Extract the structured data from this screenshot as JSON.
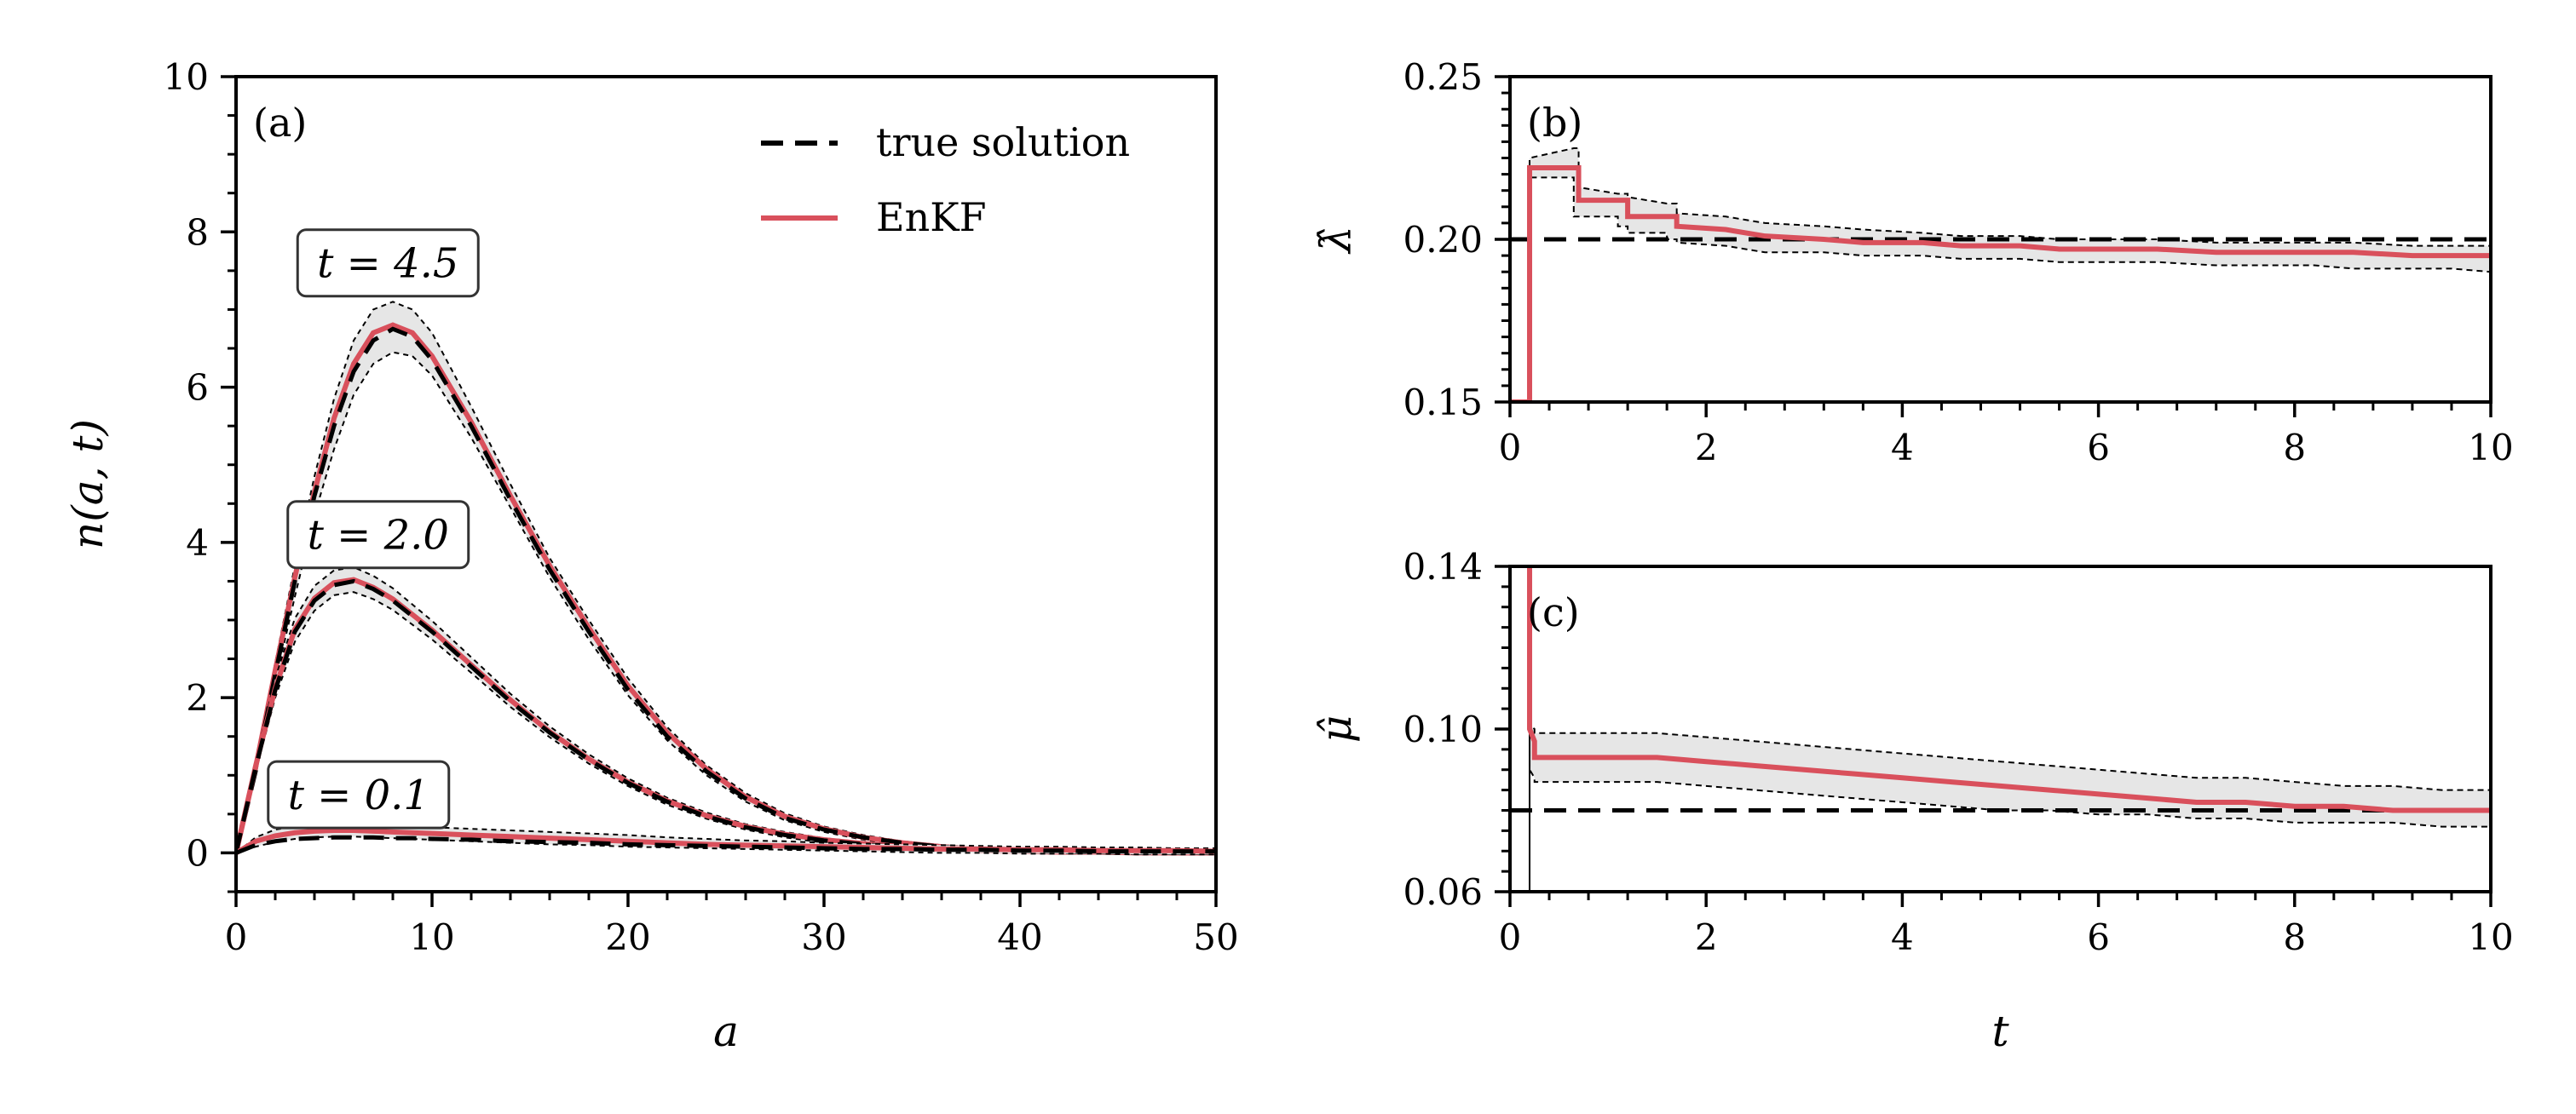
{
  "colors": {
    "enkf": "#d9505c",
    "band_fill": "#e6e6e6",
    "true": "#000000"
  },
  "legend": [
    {
      "label": "true solution",
      "style": "dashed-black"
    },
    {
      "label": "EnKF",
      "style": "solid-red"
    }
  ],
  "chart_data": [
    {
      "id": "a",
      "panel_label": "(a)",
      "type": "line",
      "xlabel": "a",
      "ylabel": "n(a, t)",
      "xlim": [
        0,
        50
      ],
      "ylim": [
        -0.5,
        10
      ],
      "xticks": [
        0,
        10,
        20,
        30,
        40,
        50
      ],
      "yticks": [
        0,
        2,
        4,
        6,
        8,
        10
      ],
      "grid": false,
      "legend_position": "top-right",
      "annotations": [
        {
          "text": "t = 4.5",
          "x": 7.75,
          "y": 7.6
        },
        {
          "text": "t = 2.0",
          "x": 7.25,
          "y": 4.1
        },
        {
          "text": "t = 0.1",
          "x": 6.25,
          "y": 0.75
        }
      ],
      "series": [
        {
          "name": "t = 4.5",
          "x": [
            0,
            1,
            2,
            3,
            4,
            5,
            6,
            7,
            8,
            9,
            10,
            12,
            14,
            16,
            18,
            20,
            22,
            24,
            26,
            28,
            30,
            32,
            34,
            36,
            38,
            40,
            42,
            44,
            46,
            48,
            50
          ],
          "true": [
            0,
            1.05,
            2.3,
            3.5,
            4.6,
            5.5,
            6.2,
            6.6,
            6.75,
            6.65,
            6.35,
            5.5,
            4.55,
            3.65,
            2.85,
            2.1,
            1.5,
            1.05,
            0.7,
            0.45,
            0.3,
            0.2,
            0.13,
            0.08,
            0.05,
            0.03,
            0.02,
            0.01,
            0.01,
            0,
            0
          ],
          "enkf": [
            0,
            1.1,
            2.35,
            3.55,
            4.65,
            5.6,
            6.3,
            6.7,
            6.8,
            6.7,
            6.4,
            5.55,
            4.6,
            3.7,
            2.9,
            2.15,
            1.55,
            1.08,
            0.72,
            0.47,
            0.31,
            0.2,
            0.13,
            0.08,
            0.05,
            0.03,
            0.02,
            0.01,
            0.01,
            0,
            0
          ],
          "lower": [
            0,
            1.0,
            2.2,
            3.3,
            4.35,
            5.2,
            5.9,
            6.3,
            6.45,
            6.4,
            6.15,
            5.35,
            4.45,
            3.55,
            2.75,
            2.03,
            1.45,
            1.0,
            0.66,
            0.42,
            0.27,
            0.17,
            0.1,
            0.06,
            0.03,
            0.01,
            0,
            -0.01,
            -0.01,
            -0.02,
            -0.02
          ],
          "upper": [
            0,
            1.15,
            2.45,
            3.7,
            4.85,
            5.85,
            6.6,
            7.0,
            7.1,
            7.0,
            6.7,
            5.75,
            4.75,
            3.8,
            3.0,
            2.25,
            1.62,
            1.13,
            0.77,
            0.51,
            0.34,
            0.23,
            0.15,
            0.1,
            0.07,
            0.05,
            0.04,
            0.03,
            0.03,
            0.02,
            0.02
          ]
        },
        {
          "name": "t = 2.0",
          "x": [
            0,
            1,
            2,
            3,
            4,
            5,
            6,
            7,
            8,
            9,
            10,
            12,
            14,
            16,
            18,
            20,
            22,
            24,
            26,
            28,
            30,
            32,
            34,
            36,
            38,
            40,
            42,
            44,
            46,
            48,
            50
          ],
          "true": [
            0,
            1.1,
            2.1,
            2.85,
            3.25,
            3.45,
            3.5,
            3.4,
            3.25,
            3.05,
            2.85,
            2.4,
            1.95,
            1.55,
            1.2,
            0.9,
            0.66,
            0.47,
            0.33,
            0.23,
            0.16,
            0.11,
            0.07,
            0.05,
            0.03,
            0.02,
            0.01,
            0.01,
            0,
            0,
            0
          ],
          "enkf": [
            0,
            1.12,
            2.12,
            2.88,
            3.28,
            3.48,
            3.52,
            3.42,
            3.27,
            3.07,
            2.87,
            2.42,
            1.97,
            1.56,
            1.21,
            0.91,
            0.67,
            0.48,
            0.34,
            0.24,
            0.17,
            0.12,
            0.08,
            0.05,
            0.03,
            0.02,
            0.01,
            0.01,
            0,
            0,
            0
          ],
          "lower": [
            0,
            1.05,
            2.0,
            2.72,
            3.12,
            3.32,
            3.36,
            3.27,
            3.13,
            2.94,
            2.75,
            2.32,
            1.88,
            1.49,
            1.15,
            0.86,
            0.62,
            0.44,
            0.3,
            0.2,
            0.13,
            0.08,
            0.05,
            0.02,
            0.01,
            0,
            -0.01,
            -0.01,
            -0.02,
            -0.02,
            -0.02
          ],
          "upper": [
            0,
            1.2,
            2.25,
            3.02,
            3.44,
            3.64,
            3.68,
            3.57,
            3.41,
            3.2,
            2.99,
            2.52,
            2.05,
            1.63,
            1.27,
            0.96,
            0.71,
            0.52,
            0.37,
            0.27,
            0.19,
            0.14,
            0.1,
            0.07,
            0.05,
            0.04,
            0.03,
            0.03,
            0.02,
            0.02,
            0.02
          ]
        },
        {
          "name": "t = 0.1",
          "x": [
            0,
            1,
            2,
            3,
            4,
            5,
            6,
            7,
            8,
            9,
            10,
            12,
            14,
            16,
            18,
            20,
            22,
            24,
            26,
            28,
            30,
            32,
            34,
            36,
            38,
            40,
            42,
            44,
            46,
            48,
            50
          ],
          "true": [
            0,
            0.1,
            0.15,
            0.18,
            0.19,
            0.2,
            0.2,
            0.2,
            0.19,
            0.19,
            0.18,
            0.17,
            0.15,
            0.14,
            0.13,
            0.11,
            0.1,
            0.09,
            0.08,
            0.07,
            0.06,
            0.05,
            0.05,
            0.04,
            0.04,
            0.03,
            0.03,
            0.02,
            0.02,
            0.02,
            0.02
          ],
          "enkf": [
            0,
            0.15,
            0.22,
            0.26,
            0.28,
            0.29,
            0.29,
            0.28,
            0.27,
            0.26,
            0.25,
            0.23,
            0.21,
            0.19,
            0.17,
            0.15,
            0.13,
            0.11,
            0.1,
            0.09,
            0.08,
            0.07,
            0.06,
            0.05,
            0.05,
            0.04,
            0.04,
            0.03,
            0.03,
            0.03,
            0.02
          ],
          "lower": [
            0,
            0.08,
            0.14,
            0.18,
            0.2,
            0.21,
            0.21,
            0.2,
            0.19,
            0.18,
            0.17,
            0.15,
            0.13,
            0.11,
            0.1,
            0.08,
            0.07,
            0.06,
            0.05,
            0.04,
            0.03,
            0.02,
            0.01,
            0,
            0,
            -0.01,
            -0.01,
            -0.01,
            -0.02,
            -0.02,
            -0.02
          ],
          "upper": [
            0,
            0.2,
            0.3,
            0.34,
            0.36,
            0.37,
            0.37,
            0.36,
            0.35,
            0.34,
            0.33,
            0.31,
            0.29,
            0.27,
            0.25,
            0.23,
            0.2,
            0.18,
            0.16,
            0.15,
            0.13,
            0.12,
            0.11,
            0.1,
            0.09,
            0.08,
            0.08,
            0.07,
            0.07,
            0.06,
            0.06
          ]
        }
      ]
    },
    {
      "id": "b",
      "panel_label": "(b)",
      "type": "line",
      "xlabel": "",
      "ylabel": "λ̂",
      "xlim": [
        0,
        10
      ],
      "ylim": [
        0.15,
        0.25
      ],
      "xticks": [
        0,
        2,
        4,
        6,
        8,
        10
      ],
      "yticks": [
        0.15,
        0.2,
        0.25
      ],
      "ytick_labels": [
        "0.15",
        "0.20",
        "0.25"
      ],
      "grid": false,
      "true_value": 0.2,
      "t": [
        0,
        0.1,
        0.2,
        0.2,
        0.65,
        0.65,
        0.7,
        0.7,
        1.1,
        1.1,
        1.2,
        1.2,
        1.6,
        1.6,
        1.7,
        1.7,
        2.2,
        2.6,
        3.2,
        3.6,
        4.2,
        4.6,
        5.2,
        5.6,
        6.2,
        6.6,
        7.2,
        7.6,
        8.2,
        8.6,
        9.2,
        9.6,
        10
      ],
      "enkf": [
        0.15,
        0.15,
        0.15,
        0.222,
        0.222,
        0.222,
        0.222,
        0.212,
        0.212,
        0.212,
        0.212,
        0.207,
        0.207,
        0.207,
        0.207,
        0.204,
        0.203,
        0.201,
        0.2,
        0.199,
        0.199,
        0.198,
        0.198,
        0.197,
        0.197,
        0.197,
        0.196,
        0.196,
        0.196,
        0.196,
        0.195,
        0.195,
        0.195
      ],
      "lower": [
        0.15,
        0.15,
        0.15,
        0.219,
        0.219,
        0.207,
        0.207,
        0.207,
        0.207,
        0.204,
        0.204,
        0.202,
        0.202,
        0.2,
        0.2,
        0.199,
        0.198,
        0.196,
        0.196,
        0.195,
        0.195,
        0.194,
        0.194,
        0.193,
        0.193,
        0.193,
        0.192,
        0.192,
        0.192,
        0.191,
        0.191,
        0.191,
        0.19
      ],
      "upper": [
        0.15,
        0.15,
        0.15,
        0.225,
        0.228,
        0.228,
        0.228,
        0.216,
        0.214,
        0.214,
        0.214,
        0.213,
        0.211,
        0.211,
        0.211,
        0.208,
        0.207,
        0.205,
        0.204,
        0.203,
        0.202,
        0.201,
        0.201,
        0.2,
        0.2,
        0.2,
        0.199,
        0.199,
        0.199,
        0.199,
        0.198,
        0.198,
        0.198
      ]
    },
    {
      "id": "c",
      "panel_label": "(c)",
      "type": "line",
      "xlabel": "t",
      "ylabel": "μ̂",
      "xlim": [
        0,
        10
      ],
      "ylim": [
        0.06,
        0.14
      ],
      "xticks": [
        0,
        2,
        4,
        6,
        8,
        10
      ],
      "yticks": [
        0.06,
        0.1,
        0.14
      ],
      "ytick_labels": [
        "0.06",
        "0.10",
        "0.14"
      ],
      "grid": false,
      "true_value": 0.08,
      "t": [
        0.2,
        0.2,
        0.25,
        0.25,
        1,
        1.5,
        2,
        2.5,
        3,
        3.5,
        4,
        4.5,
        5,
        5.5,
        6,
        6.5,
        7,
        7.5,
        8,
        8.5,
        9,
        9.5,
        10
      ],
      "enkf": [
        0.14,
        0.1,
        0.097,
        0.093,
        0.093,
        0.093,
        0.092,
        0.091,
        0.09,
        0.089,
        0.088,
        0.087,
        0.086,
        0.085,
        0.084,
        0.083,
        0.082,
        0.082,
        0.081,
        0.081,
        0.08,
        0.08,
        0.08
      ],
      "lower": [
        0.14,
        0.09,
        0.088,
        0.087,
        0.087,
        0.087,
        0.086,
        0.085,
        0.084,
        0.083,
        0.082,
        0.081,
        0.08,
        0.08,
        0.079,
        0.079,
        0.078,
        0.078,
        0.077,
        0.077,
        0.077,
        0.076,
        0.076
      ],
      "upper": [
        0.14,
        0.101,
        0.1,
        0.099,
        0.099,
        0.099,
        0.098,
        0.097,
        0.096,
        0.095,
        0.094,
        0.093,
        0.092,
        0.091,
        0.09,
        0.089,
        0.088,
        0.088,
        0.087,
        0.086,
        0.086,
        0.085,
        0.085
      ]
    }
  ]
}
